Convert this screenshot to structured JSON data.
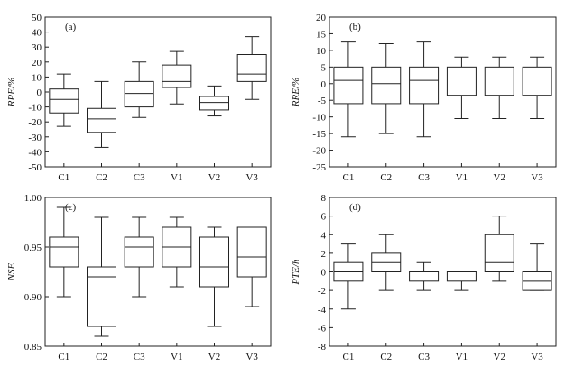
{
  "chart_data": [
    {
      "type": "box",
      "panel_tag": "(a)",
      "ylabel": "RPE/%",
      "categories": [
        "C1",
        "C2",
        "C3",
        "V1",
        "V2",
        "V3"
      ],
      "ylim": [
        -50,
        50
      ],
      "yticks": [
        "50",
        "40",
        "30",
        "20",
        "10",
        "0",
        "-10",
        "-20",
        "-30",
        "-40",
        "-50"
      ],
      "ytick_values": [
        50,
        40,
        30,
        20,
        10,
        0,
        -10,
        -20,
        -30,
        -40,
        -50
      ],
      "boxes": [
        {
          "min": -23,
          "q1": -14,
          "median": -5,
          "q3": 2,
          "max": 12
        },
        {
          "min": -37,
          "q1": -27,
          "median": -18,
          "q3": -11,
          "max": 7
        },
        {
          "min": -17,
          "q1": -10,
          "median": -1,
          "q3": 7,
          "max": 20
        },
        {
          "min": -8,
          "q1": 3,
          "median": 7,
          "q3": 18,
          "max": 27
        },
        {
          "min": -16,
          "q1": -12,
          "median": -7,
          "q3": -3,
          "max": 4
        },
        {
          "min": -5,
          "q1": 7,
          "median": 12,
          "q3": 25,
          "max": 37
        }
      ]
    },
    {
      "type": "box",
      "panel_tag": "(b)",
      "ylabel": "RRE/%",
      "categories": [
        "C1",
        "C2",
        "C3",
        "V1",
        "V2",
        "V3"
      ],
      "ylim": [
        -25,
        20
      ],
      "yticks": [
        "20",
        "15",
        "10",
        "5",
        "0",
        "-5",
        "-10",
        "-15",
        "-20",
        "-25"
      ],
      "ytick_values": [
        20,
        15,
        10,
        5,
        0,
        -5,
        -10,
        -15,
        -20,
        -25
      ],
      "boxes": [
        {
          "min": -16,
          "q1": -6,
          "median": 1,
          "q3": 5,
          "max": 12.5
        },
        {
          "min": -15,
          "q1": -6,
          "median": 0,
          "q3": 5,
          "max": 12
        },
        {
          "min": -16,
          "q1": -6,
          "median": 1,
          "q3": 5,
          "max": 12.5
        },
        {
          "min": -10.5,
          "q1": -3.5,
          "median": -1,
          "q3": 5,
          "max": 8
        },
        {
          "min": -10.5,
          "q1": -3.5,
          "median": -1,
          "q3": 5,
          "max": 8
        },
        {
          "min": -10.5,
          "q1": -3.5,
          "median": -1,
          "q3": 5,
          "max": 8
        }
      ]
    },
    {
      "type": "box",
      "panel_tag": "(c)",
      "ylabel": "NSE",
      "categories": [
        "C1",
        "C2",
        "C3",
        "V1",
        "V2",
        "V3"
      ],
      "ylim": [
        0.85,
        1.0
      ],
      "yticks": [
        "1.00",
        "0.95",
        "0.90",
        "0.85"
      ],
      "ytick_values": [
        1.0,
        0.95,
        0.9,
        0.85
      ],
      "boxes": [
        {
          "min": 0.9,
          "q1": 0.93,
          "median": 0.95,
          "q3": 0.96,
          "max": 0.99
        },
        {
          "min": 0.86,
          "q1": 0.87,
          "median": 0.92,
          "q3": 0.93,
          "max": 0.98
        },
        {
          "min": 0.9,
          "q1": 0.93,
          "median": 0.95,
          "q3": 0.96,
          "max": 0.98
        },
        {
          "min": 0.91,
          "q1": 0.93,
          "median": 0.95,
          "q3": 0.97,
          "max": 0.98
        },
        {
          "min": 0.87,
          "q1": 0.91,
          "median": 0.93,
          "q3": 0.96,
          "max": 0.97
        },
        {
          "min": 0.89,
          "q1": 0.92,
          "median": 0.94,
          "q3": 0.97,
          "max": 0.97
        }
      ]
    },
    {
      "type": "box",
      "panel_tag": "(d)",
      "ylabel": "PTE/h",
      "categories": [
        "C1",
        "C2",
        "C3",
        "V1",
        "V2",
        "V3"
      ],
      "ylim": [
        -8,
        8
      ],
      "yticks": [
        "8",
        "6",
        "4",
        "2",
        "0",
        "-2",
        "-4",
        "-6",
        "-8"
      ],
      "ytick_values": [
        8,
        6,
        4,
        2,
        0,
        -2,
        -4,
        -6,
        -8
      ],
      "boxes": [
        {
          "min": -4,
          "q1": -1,
          "median": 0,
          "q3": 1,
          "max": 3
        },
        {
          "min": -2,
          "q1": 0,
          "median": 1,
          "q3": 2,
          "max": 4
        },
        {
          "min": -2,
          "q1": -1,
          "median": 0,
          "q3": 0,
          "max": 1
        },
        {
          "min": -2,
          "q1": -1,
          "median": 0,
          "q3": 0,
          "max": 0
        },
        {
          "min": -1,
          "q1": 0,
          "median": 1,
          "q3": 4,
          "max": 6
        },
        {
          "min": -2,
          "q1": -2,
          "median": -1,
          "q3": 0,
          "max": 3
        }
      ]
    }
  ]
}
